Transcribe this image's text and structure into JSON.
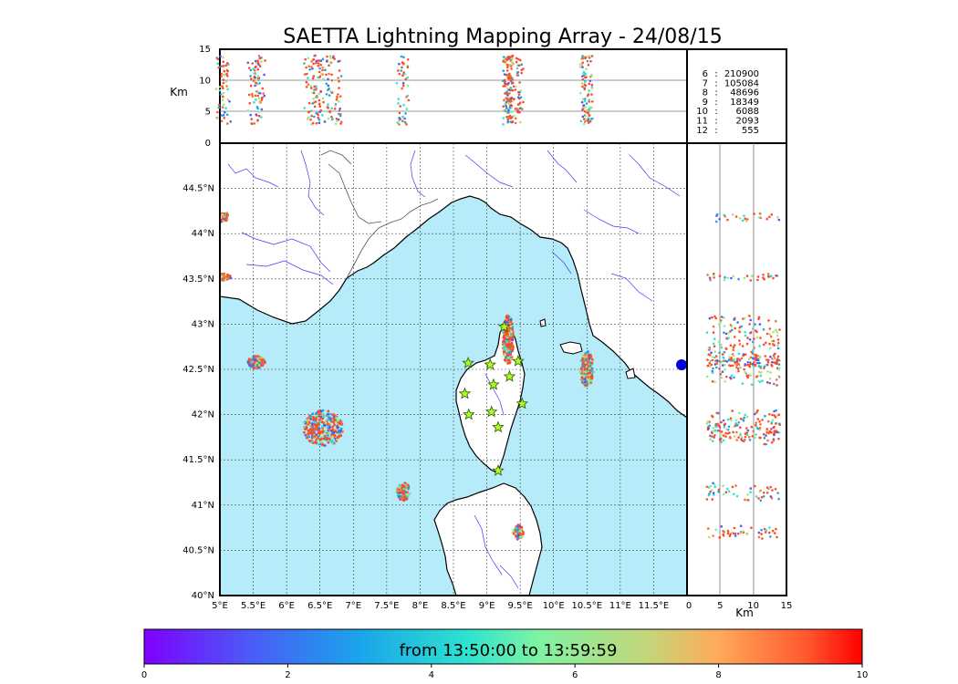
{
  "title": "SAETTA Lightning Mapping Array - 24/08/15",
  "colors": {
    "sea": "#b6ecfa",
    "land": "#ffffff",
    "coast": "#000000",
    "river": "#3a3aff",
    "border": "#555555",
    "highlight": "#ff0000"
  },
  "chart_data": {
    "type": "scatter",
    "description_axes": {
      "map_x": {
        "min": 5,
        "max": 12,
        "ticks": [
          "5°E",
          "5.5°E",
          "6°E",
          "6.5°E",
          "7°E",
          "7.5°E",
          "8°E",
          "8.5°E",
          "9°E",
          "9.5°E",
          "10°E",
          "10.5°E",
          "11°E",
          "11.5°E"
        ]
      },
      "map_y": {
        "min": 40,
        "max": 45,
        "ticks": [
          "40°N",
          "40.5°N",
          "41°N",
          "41.5°N",
          "42°N",
          "42.5°N",
          "43°N",
          "43.5°N",
          "44°N",
          "44.5°N"
        ]
      },
      "alt_top": {
        "min": 0,
        "max": 15,
        "ticks": [
          "0",
          "5",
          "10",
          "15"
        ],
        "label": "Km"
      },
      "alt_right": {
        "min": 0,
        "max": 15,
        "ticks": [
          "0",
          "5",
          "10",
          "15"
        ],
        "label": "Km"
      }
    },
    "altitude_counts": [
      {
        "alt": "6",
        "sep": ":",
        "count": "210900",
        "highlight": false
      },
      {
        "alt": "7",
        "sep": ":",
        "count": "105084",
        "highlight": true
      },
      {
        "alt": "8",
        "sep": ":",
        "count": "48696",
        "highlight": false
      },
      {
        "alt": "9",
        "sep": ":",
        "count": "18349",
        "highlight": false
      },
      {
        "alt": "10",
        "sep": ":",
        "count": "6088",
        "highlight": false
      },
      {
        "alt": "11",
        "sep": ":",
        "count": "2093",
        "highlight": false
      },
      {
        "alt": "12",
        "sep": ":",
        "count": "555",
        "highlight": false
      }
    ],
    "colorbar": {
      "min": 0,
      "max": 10,
      "ticks": [
        "0",
        "2",
        "4",
        "6",
        "8",
        "10"
      ],
      "label": "from 13:50:00 to 13:59:59"
    },
    "clusters": [
      {
        "lon": 5.55,
        "lat": 42.58,
        "rx": 0.13,
        "ry": 0.07,
        "n": 160
      },
      {
        "lon": 6.55,
        "lat": 41.85,
        "rx": 0.3,
        "ry": 0.2,
        "n": 320
      },
      {
        "lon": 7.75,
        "lat": 41.15,
        "rx": 0.1,
        "ry": 0.1,
        "n": 100
      },
      {
        "lon": 9.32,
        "lat": 42.82,
        "rx": 0.08,
        "ry": 0.28,
        "n": 260
      },
      {
        "lon": 10.5,
        "lat": 42.5,
        "rx": 0.1,
        "ry": 0.2,
        "n": 180
      },
      {
        "lon": 9.47,
        "lat": 40.7,
        "rx": 0.08,
        "ry": 0.08,
        "n": 90
      },
      {
        "lon": 5.05,
        "lat": 43.52,
        "rx": 0.12,
        "ry": 0.04,
        "n": 60
      },
      {
        "lon": 5.05,
        "lat": 44.18,
        "rx": 0.08,
        "ry": 0.06,
        "n": 50
      }
    ],
    "stations": [
      {
        "lon": 8.72,
        "lat": 42.57
      },
      {
        "lon": 9.05,
        "lat": 42.55
      },
      {
        "lon": 9.47,
        "lat": 42.59
      },
      {
        "lon": 9.26,
        "lat": 42.97
      },
      {
        "lon": 9.1,
        "lat": 42.33
      },
      {
        "lon": 8.67,
        "lat": 42.23
      },
      {
        "lon": 8.73,
        "lat": 42.0
      },
      {
        "lon": 9.07,
        "lat": 42.03
      },
      {
        "lon": 9.53,
        "lat": 42.12
      },
      {
        "lon": 9.17,
        "lat": 41.86
      },
      {
        "lon": 9.17,
        "lat": 41.38
      },
      {
        "lon": 9.34,
        "lat": 42.42
      }
    ]
  }
}
